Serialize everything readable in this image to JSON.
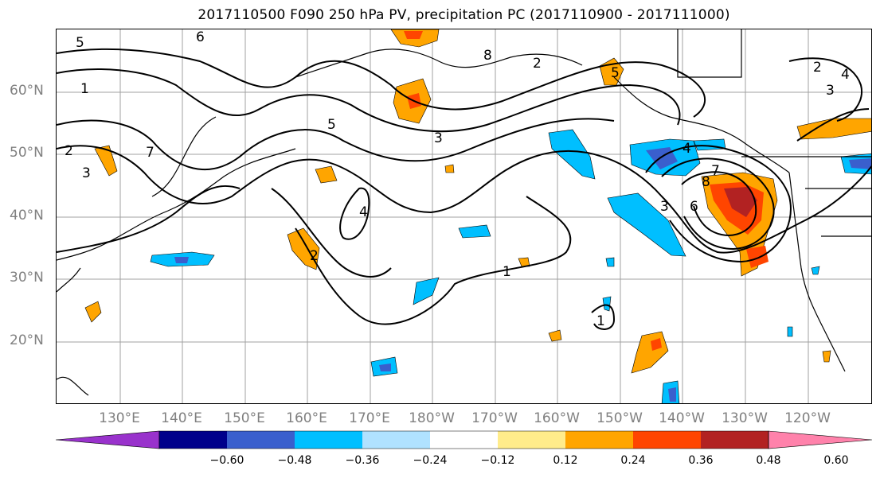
{
  "title": "2017110500 F090 250 hPa PV, precipitation PC (2017110900 - 2017111000)",
  "lat_labels": [
    "60°N",
    "50°N",
    "40°N",
    "30°N",
    "20°N"
  ],
  "lon_labels": [
    "130°E",
    "140°E",
    "150°E",
    "160°E",
    "170°E",
    "180°W",
    "170°W",
    "160°W",
    "150°W",
    "140°W",
    "130°W",
    "120°W"
  ],
  "contour_labels": [
    "5",
    "6",
    "1",
    "2",
    "3",
    "7",
    "5",
    "3",
    "4",
    "1",
    "2",
    "8",
    "2",
    "5",
    "4",
    "3",
    "6",
    "7",
    "8",
    "1",
    "2",
    "3",
    "4"
  ],
  "colorbar": {
    "tick_labels": [
      "−0.60",
      "−0.48",
      "−0.36",
      "−0.24",
      "−0.12",
      "0.12",
      "0.24",
      "0.36",
      "0.48",
      "0.60"
    ],
    "levels": [
      -0.6,
      -0.48,
      -0.36,
      -0.24,
      -0.12,
      0.12,
      0.24,
      0.36,
      0.48,
      0.6
    ],
    "colors": [
      "#9932cc",
      "#00008b",
      "#3a5fcd",
      "#00bfff",
      "#b0e2ff",
      "#ffffff",
      "#ffec8b",
      "#ffa500",
      "#ff4500",
      "#b22222",
      "#ff82ab"
    ]
  }
}
